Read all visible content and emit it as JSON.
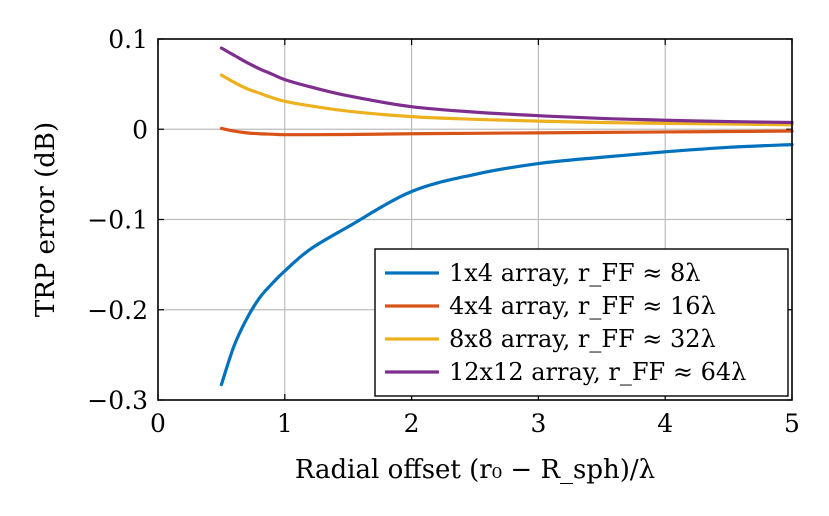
{
  "chart_data": {
    "type": "line",
    "title": "",
    "xlabel": "Radial offset (r₀ − R_sph)/λ",
    "ylabel": "TRP error (dB)",
    "xlim": [
      0,
      5
    ],
    "ylim": [
      -0.3,
      0.1
    ],
    "xticks": [
      "0",
      "1",
      "2",
      "3",
      "4",
      "5"
    ],
    "xtick_values": [
      0,
      1,
      2,
      3,
      4,
      5
    ],
    "yticks": [
      "0.1",
      "0",
      "−0.1",
      "−0.2",
      "−0.3"
    ],
    "ytick_values": [
      0.1,
      0,
      -0.1,
      -0.2,
      -0.3
    ],
    "grid": true,
    "legend_position": "bottom-right",
    "series": [
      {
        "name": "1x4 array, r_FF ≈ 8λ",
        "color": "#0072BD",
        "x": [
          0.5,
          0.6,
          0.7,
          0.8,
          0.9,
          1.0,
          1.2,
          1.5,
          2.0,
          2.5,
          3.0,
          3.5,
          4.0,
          4.5,
          5.0
        ],
        "y": [
          -0.283,
          -0.24,
          -0.21,
          -0.187,
          -0.171,
          -0.157,
          -0.133,
          -0.108,
          -0.069,
          -0.05,
          -0.038,
          -0.031,
          -0.025,
          -0.02,
          -0.017
        ]
      },
      {
        "name": "4x4 array, r_FF ≈ 16λ",
        "color": "#D95319",
        "x": [
          0.5,
          0.6,
          0.7,
          0.8,
          0.9,
          1.0,
          1.2,
          1.5,
          2.0,
          2.5,
          3.0,
          3.5,
          4.0,
          4.5,
          5.0
        ],
        "y": [
          0.001,
          -0.002,
          -0.004,
          -0.005,
          -0.0055,
          -0.006,
          -0.006,
          -0.0058,
          -0.005,
          -0.0045,
          -0.004,
          -0.0035,
          -0.003,
          -0.0025,
          -0.002
        ]
      },
      {
        "name": "8x8 array, r_FF ≈ 32λ",
        "color": "#EDB120",
        "x": [
          0.5,
          0.6,
          0.7,
          0.8,
          0.9,
          1.0,
          1.2,
          1.5,
          2.0,
          2.5,
          3.0,
          3.5,
          4.0,
          4.5,
          5.0
        ],
        "y": [
          0.06,
          0.052,
          0.045,
          0.04,
          0.035,
          0.031,
          0.026,
          0.02,
          0.014,
          0.011,
          0.009,
          0.0075,
          0.0065,
          0.0058,
          0.005
        ]
      },
      {
        "name": "12x12 array, r_FF ≈ 64λ",
        "color": "#7E2F8E",
        "x": [
          0.5,
          0.6,
          0.7,
          0.8,
          0.9,
          1.0,
          1.2,
          1.5,
          2.0,
          2.5,
          3.0,
          3.5,
          4.0,
          4.5,
          5.0
        ],
        "y": [
          0.09,
          0.082,
          0.074,
          0.067,
          0.061,
          0.055,
          0.047,
          0.037,
          0.025,
          0.019,
          0.015,
          0.012,
          0.01,
          0.0085,
          0.0075
        ]
      }
    ]
  }
}
